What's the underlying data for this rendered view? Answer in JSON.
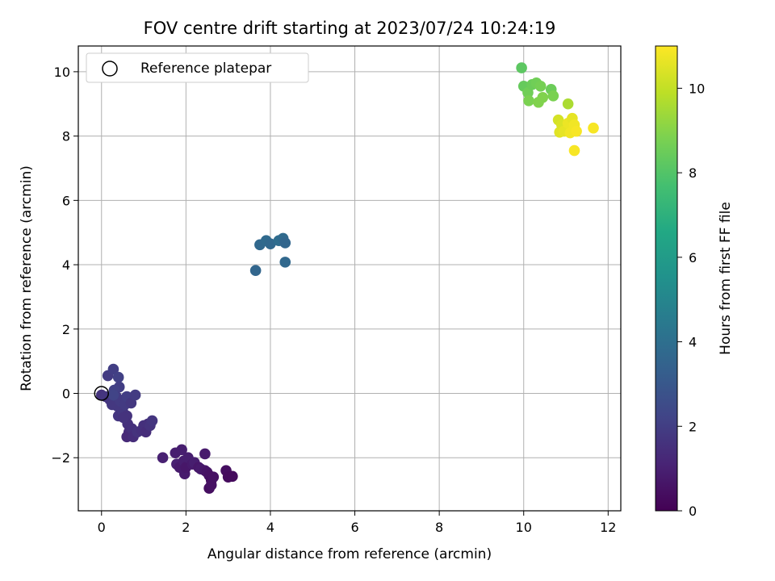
{
  "chart_data": {
    "type": "scatter",
    "title": "FOV centre drift starting at 2023/07/24 10:24:19",
    "xlabel": "Angular distance from reference (arcmin)",
    "ylabel": "Rotation from reference (arcmin)",
    "xlim": [
      -0.55,
      12.3
    ],
    "ylim": [
      -3.65,
      10.8
    ],
    "xticks": [
      0,
      2,
      4,
      6,
      8,
      10,
      12
    ],
    "yticks": [
      -2,
      0,
      2,
      4,
      6,
      8,
      10
    ],
    "grid": true,
    "legend": {
      "position": "top-left",
      "entries": [
        "Reference platepar"
      ]
    },
    "reference_point": {
      "x": 0,
      "y": 0,
      "marker": "open-circle"
    },
    "colorbar": {
      "label": "Hours from first FF file",
      "range": [
        0,
        11
      ],
      "ticks": [
        0,
        2,
        4,
        6,
        8,
        10
      ],
      "colormap": "viridis"
    },
    "points": [
      {
        "x": 1.45,
        "y": -2.0,
        "h": 1.0
      },
      {
        "x": 1.75,
        "y": -1.85,
        "h": 0.9
      },
      {
        "x": 1.78,
        "y": -2.2,
        "h": 1.0
      },
      {
        "x": 1.85,
        "y": -2.3,
        "h": 0.8
      },
      {
        "x": 1.9,
        "y": -1.75,
        "h": 0.9
      },
      {
        "x": 1.95,
        "y": -2.1,
        "h": 0.9
      },
      {
        "x": 1.97,
        "y": -2.5,
        "h": 0.8
      },
      {
        "x": 2.0,
        "y": -2.3,
        "h": 0.7
      },
      {
        "x": 2.05,
        "y": -2.0,
        "h": 0.9
      },
      {
        "x": 2.15,
        "y": -2.2,
        "h": 0.8
      },
      {
        "x": 2.2,
        "y": -2.15,
        "h": 0.9
      },
      {
        "x": 2.3,
        "y": -2.3,
        "h": 0.7
      },
      {
        "x": 2.35,
        "y": -2.35,
        "h": 0.8
      },
      {
        "x": 2.45,
        "y": -1.88,
        "h": 0.8
      },
      {
        "x": 2.45,
        "y": -2.4,
        "h": 0.7
      },
      {
        "x": 2.5,
        "y": -2.45,
        "h": 0.6
      },
      {
        "x": 2.55,
        "y": -2.55,
        "h": 0.5
      },
      {
        "x": 2.55,
        "y": -2.95,
        "h": 0.4
      },
      {
        "x": 2.6,
        "y": -2.7,
        "h": 0.4
      },
      {
        "x": 2.6,
        "y": -2.85,
        "h": 0.5
      },
      {
        "x": 2.65,
        "y": -2.6,
        "h": 0.5
      },
      {
        "x": 2.95,
        "y": -2.4,
        "h": 0.4
      },
      {
        "x": 3.0,
        "y": -2.6,
        "h": 0.3
      },
      {
        "x": 3.1,
        "y": -2.58,
        "h": 0.3
      },
      {
        "x": 0.15,
        "y": 0.55,
        "h": 1.9
      },
      {
        "x": 0.28,
        "y": 0.75,
        "h": 2.0
      },
      {
        "x": 0.4,
        "y": 0.5,
        "h": 2.1
      },
      {
        "x": 0.42,
        "y": 0.2,
        "h": 2.0
      },
      {
        "x": 0.0,
        "y": -0.05,
        "h": 1.6
      },
      {
        "x": 0.1,
        "y": -0.1,
        "h": 1.7
      },
      {
        "x": 0.2,
        "y": -0.2,
        "h": 1.7
      },
      {
        "x": 0.25,
        "y": -0.35,
        "h": 1.8
      },
      {
        "x": 0.3,
        "y": 0.1,
        "h": 2.1
      },
      {
        "x": 0.35,
        "y": -0.1,
        "h": 1.9
      },
      {
        "x": 0.38,
        "y": -0.4,
        "h": 1.8
      },
      {
        "x": 0.45,
        "y": -0.25,
        "h": 1.9
      },
      {
        "x": 0.4,
        "y": -0.7,
        "h": 1.7
      },
      {
        "x": 0.5,
        "y": -0.55,
        "h": 1.8
      },
      {
        "x": 0.55,
        "y": -0.35,
        "h": 1.9
      },
      {
        "x": 0.6,
        "y": -0.1,
        "h": 2.0
      },
      {
        "x": 0.6,
        "y": -0.7,
        "h": 1.6
      },
      {
        "x": 0.62,
        "y": -0.95,
        "h": 1.5
      },
      {
        "x": 0.65,
        "y": -1.2,
        "h": 1.4
      },
      {
        "x": 0.6,
        "y": -1.35,
        "h": 1.3
      },
      {
        "x": 0.7,
        "y": -0.3,
        "h": 1.8
      },
      {
        "x": 0.72,
        "y": -1.1,
        "h": 1.5
      },
      {
        "x": 0.75,
        "y": -1.35,
        "h": 1.4
      },
      {
        "x": 0.8,
        "y": -0.05,
        "h": 1.9
      },
      {
        "x": 0.85,
        "y": -1.2,
        "h": 1.6
      },
      {
        "x": 0.95,
        "y": -1.15,
        "h": 1.5
      },
      {
        "x": 1.0,
        "y": -1.0,
        "h": 1.5
      },
      {
        "x": 1.05,
        "y": -1.2,
        "h": 1.4
      },
      {
        "x": 1.1,
        "y": -0.95,
        "h": 1.5
      },
      {
        "x": 1.15,
        "y": -1.0,
        "h": 1.6
      },
      {
        "x": 1.2,
        "y": -0.85,
        "h": 1.7
      },
      {
        "x": 0.52,
        "y": -0.75,
        "h": 1.6
      },
      {
        "x": 0.28,
        "y": -0.05,
        "h": 2.2
      },
      {
        "x": 3.65,
        "y": 3.82,
        "h": 3.6
      },
      {
        "x": 3.75,
        "y": 4.62,
        "h": 3.7
      },
      {
        "x": 3.9,
        "y": 4.75,
        "h": 3.8
      },
      {
        "x": 4.0,
        "y": 4.65,
        "h": 3.7
      },
      {
        "x": 4.2,
        "y": 4.75,
        "h": 3.9
      },
      {
        "x": 4.3,
        "y": 4.82,
        "h": 3.8
      },
      {
        "x": 4.35,
        "y": 4.68,
        "h": 3.6
      },
      {
        "x": 4.35,
        "y": 4.08,
        "h": 3.7
      },
      {
        "x": 9.95,
        "y": 10.12,
        "h": 8.2
      },
      {
        "x": 10.0,
        "y": 9.55,
        "h": 8.4
      },
      {
        "x": 10.1,
        "y": 9.35,
        "h": 8.6
      },
      {
        "x": 10.12,
        "y": 9.1,
        "h": 8.8
      },
      {
        "x": 10.2,
        "y": 9.6,
        "h": 8.5
      },
      {
        "x": 10.3,
        "y": 9.65,
        "h": 8.6
      },
      {
        "x": 10.35,
        "y": 9.05,
        "h": 8.9
      },
      {
        "x": 10.4,
        "y": 9.55,
        "h": 8.7
      },
      {
        "x": 10.45,
        "y": 9.2,
        "h": 8.9
      },
      {
        "x": 10.65,
        "y": 9.45,
        "h": 8.5
      },
      {
        "x": 10.7,
        "y": 9.25,
        "h": 8.8
      },
      {
        "x": 11.05,
        "y": 9.0,
        "h": 9.6
      },
      {
        "x": 10.82,
        "y": 8.5,
        "h": 10.3
      },
      {
        "x": 10.85,
        "y": 8.12,
        "h": 10.5
      },
      {
        "x": 10.9,
        "y": 8.35,
        "h": 10.4
      },
      {
        "x": 10.95,
        "y": 8.15,
        "h": 10.6
      },
      {
        "x": 11.05,
        "y": 8.4,
        "h": 10.7
      },
      {
        "x": 11.1,
        "y": 8.1,
        "h": 10.8
      },
      {
        "x": 11.15,
        "y": 8.55,
        "h": 10.6
      },
      {
        "x": 11.2,
        "y": 8.35,
        "h": 10.8
      },
      {
        "x": 11.25,
        "y": 8.15,
        "h": 10.9
      },
      {
        "x": 11.2,
        "y": 7.55,
        "h": 10.9
      },
      {
        "x": 11.65,
        "y": 8.25,
        "h": 10.9
      }
    ]
  }
}
